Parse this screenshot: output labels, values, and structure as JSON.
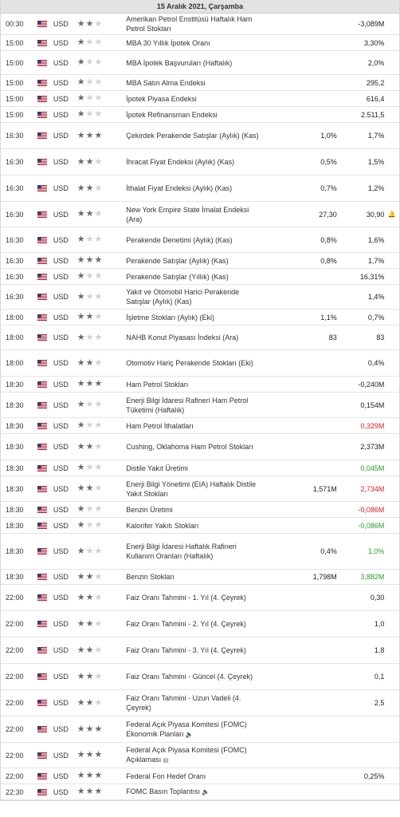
{
  "calendar": {
    "date_header": "15 Aralık 2021, Çarşamba",
    "events": [
      {
        "time": "00:30",
        "currency": "USD",
        "stars": 2,
        "event": "Amerikan Petrol Enstitüsü Haftalık Ham Petrol Stokları",
        "actual": "",
        "forecast": "",
        "previous": "-3,089M",
        "prev_color": "",
        "h": 27
      },
      {
        "time": "15:00",
        "currency": "USD",
        "stars": 1,
        "event": "MBA 30 Yıllık İpotek Oranı",
        "actual": "",
        "forecast": "",
        "previous": "3,30%",
        "prev_color": "",
        "h": 20
      },
      {
        "time": "15:00",
        "currency": "USD",
        "stars": 1,
        "event": "MBA İpotek Başvuruları (Haftalık)",
        "actual": "",
        "forecast": "",
        "previous": "2,0%",
        "prev_color": "",
        "h": 30
      },
      {
        "time": "15:00",
        "currency": "USD",
        "stars": 1,
        "event": "MBA Satın Alma Endeksi",
        "actual": "",
        "forecast": "",
        "previous": "295,2",
        "prev_color": "",
        "h": 20
      },
      {
        "time": "15:00",
        "currency": "USD",
        "stars": 1,
        "event": "İpotek Piyasa Endeksi",
        "actual": "",
        "forecast": "",
        "previous": "616,4",
        "prev_color": "",
        "h": 20
      },
      {
        "time": "15:00",
        "currency": "USD",
        "stars": 1,
        "event": "İpotek Refinansman Endeksi",
        "actual": "",
        "forecast": "",
        "previous": "2.511,5",
        "prev_color": "",
        "h": 20
      },
      {
        "time": "16:30",
        "currency": "USD",
        "stars": 3,
        "event": "Çekirdek Perakende Satışlar (Aylık) (Kas)",
        "actual": "",
        "forecast": "1,0%",
        "previous": "1,7%",
        "prev_color": "",
        "h": 33
      },
      {
        "time": "16:30",
        "currency": "USD",
        "stars": 2,
        "event": "İhracat Fiyat Endeksi (Aylık) (Kas)",
        "actual": "",
        "forecast": "0,5%",
        "previous": "1,5%",
        "prev_color": "",
        "h": 33
      },
      {
        "time": "16:30",
        "currency": "USD",
        "stars": 2,
        "event": "İthalat Fiyat Endeksi (Aylık) (Kas)",
        "actual": "",
        "forecast": "0,7%",
        "previous": "1,2%",
        "prev_color": "",
        "h": 33
      },
      {
        "time": "16:30",
        "currency": "USD",
        "stars": 2,
        "event": "New York Empire State İmalat Endeksi (Ara)",
        "actual": "",
        "forecast": "27,30",
        "previous": "30,90",
        "prev_color": "",
        "h": 32,
        "bell": true
      },
      {
        "time": "16:30",
        "currency": "USD",
        "stars": 1,
        "event": "Perakende Denetimi (Aylık) (Kas)",
        "actual": "",
        "forecast": "0,8%",
        "previous": "1,6%",
        "prev_color": "",
        "h": 32
      },
      {
        "time": "16:30",
        "currency": "USD",
        "stars": 3,
        "event": "Perakende Satışlar (Aylık) (Kas)",
        "actual": "",
        "forecast": "0,8%",
        "previous": "1,7%",
        "prev_color": "",
        "h": 20
      },
      {
        "time": "16:30",
        "currency": "USD",
        "stars": 1,
        "event": "Perakende Satışlar (Yıllık) (Kas)",
        "actual": "",
        "forecast": "",
        "previous": "16,31%",
        "prev_color": "",
        "h": 20
      },
      {
        "time": "16:30",
        "currency": "USD",
        "stars": 1,
        "event": "Yakıt ve Otomobil Harici Perakende Satışlar (Aylık) (Kas)",
        "actual": "",
        "forecast": "",
        "previous": "1,4%",
        "prev_color": "",
        "h": 31
      },
      {
        "time": "18:00",
        "currency": "USD",
        "stars": 2,
        "event": "İşletme Stokları (Aylık) (Eki)",
        "actual": "",
        "forecast": "1,1%",
        "previous": "0,7%",
        "prev_color": "",
        "h": 20
      },
      {
        "time": "18:00",
        "currency": "USD",
        "stars": 1,
        "event": "NAHB Konut Piyasası İndeksi (Ara)",
        "actual": "",
        "forecast": "83",
        "previous": "83",
        "prev_color": "",
        "h": 31
      },
      {
        "time": "18:00",
        "currency": "USD",
        "stars": 2,
        "event": "Otomotiv Hariç Perakende Stokları (Eki)",
        "actual": "",
        "forecast": "",
        "previous": "0,4%",
        "prev_color": "",
        "h": 33
      },
      {
        "time": "18:30",
        "currency": "USD",
        "stars": 3,
        "event": "Ham Petrol Stokları",
        "actual": "",
        "forecast": "",
        "previous": "-0,240M",
        "prev_color": "",
        "h": 20
      },
      {
        "time": "18:30",
        "currency": "USD",
        "stars": 1,
        "event": "Enerji Bilgi İdaresi Rafineri Ham Petrol Tüketimi (Haftalık)",
        "actual": "",
        "forecast": "",
        "previous": "0,154M",
        "prev_color": "",
        "h": 32
      },
      {
        "time": "18:30",
        "currency": "USD",
        "stars": 1,
        "event": "Ham Petrol İthalatları",
        "actual": "",
        "forecast": "",
        "previous": "0,329M",
        "prev_color": "red",
        "h": 20
      },
      {
        "time": "18:30",
        "currency": "USD",
        "stars": 2,
        "event": "Cushing, Oklahoma Ham Petrol Stokları",
        "actual": "",
        "forecast": "",
        "previous": "2,373M",
        "prev_color": "",
        "h": 33
      },
      {
        "time": "18:30",
        "currency": "USD",
        "stars": 1,
        "event": "Distile Yakıt Üretimi",
        "actual": "",
        "forecast": "",
        "previous": "0,045M",
        "prev_color": "green",
        "h": 20
      },
      {
        "time": "18:30",
        "currency": "USD",
        "stars": 2,
        "event": "Enerji Bilgi Yönetimi (EIA) Haftalık Distile Yakıt Stokları",
        "actual": "",
        "forecast": "1,571M",
        "previous": "2,734M",
        "prev_color": "red",
        "h": 32
      },
      {
        "time": "18:30",
        "currency": "USD",
        "stars": 1,
        "event": "Benzin Üretimi",
        "actual": "",
        "forecast": "",
        "previous": "-0,086M",
        "prev_color": "red",
        "h": 20
      },
      {
        "time": "18:30",
        "currency": "USD",
        "stars": 1,
        "event": "Kalorifer Yakıtı Stokları",
        "actual": "",
        "forecast": "",
        "previous": "-0,086M",
        "prev_color": "green",
        "h": 20
      },
      {
        "time": "18:30",
        "currency": "USD",
        "stars": 1,
        "event": "Enerji Bilgi İdaresi Haftalık Rafineri Kullanım Oranları (Haftalık)",
        "actual": "",
        "forecast": "0,4%",
        "previous": "1,0%",
        "prev_color": "green",
        "h": 45
      },
      {
        "time": "18:30",
        "currency": "USD",
        "stars": 2,
        "event": "Benzin Stokları",
        "actual": "",
        "forecast": "1,798M",
        "previous": "3,882M",
        "prev_color": "green",
        "h": 19
      },
      {
        "time": "22:00",
        "currency": "USD",
        "stars": 2,
        "event": "Faiz Oranı Tahmini - 1. Yıl (4. Çeyrek)",
        "actual": "",
        "forecast": "",
        "previous": "0,30",
        "prev_color": "",
        "h": 33
      },
      {
        "time": "22:00",
        "currency": "USD",
        "stars": 2,
        "event": "Faiz Oranı Tahmini - 2. Yıl (4. Çeyrek)",
        "actual": "",
        "forecast": "",
        "previous": "1,0",
        "prev_color": "",
        "h": 33
      },
      {
        "time": "22:00",
        "currency": "USD",
        "stars": 2,
        "event": "Faiz Oranı Tahmini - 3. Yıl (4. Çeyrek)",
        "actual": "",
        "forecast": "",
        "previous": "1,8",
        "prev_color": "",
        "h": 33
      },
      {
        "time": "22:00",
        "currency": "USD",
        "stars": 2,
        "event": "Faiz Oranı Tahmini - Güncel (4. Çeyrek)",
        "actual": "",
        "forecast": "",
        "previous": "0,1",
        "prev_color": "",
        "h": 33
      },
      {
        "time": "22:00",
        "currency": "USD",
        "stars": 2,
        "event": "Faiz Oranı Tahmini - Uzun Vadeli (4. Çeyrek)",
        "actual": "",
        "forecast": "",
        "previous": "2,5",
        "prev_color": "",
        "h": 33
      },
      {
        "time": "22:00",
        "currency": "USD",
        "stars": 3,
        "event": "Federal Açık Piyasa Komitesi (FOMC) Ekonomik Planları",
        "actual": "",
        "forecast": "",
        "previous": "",
        "prev_color": "",
        "h": 33,
        "icon": "speaker"
      },
      {
        "time": "22:00",
        "currency": "USD",
        "stars": 3,
        "event": "Federal Açık Piyasa Komitesi (FOMC) Açıklaması",
        "actual": "",
        "forecast": "",
        "previous": "",
        "prev_color": "",
        "h": 32,
        "icon": "document"
      },
      {
        "time": "22:00",
        "currency": "USD",
        "stars": 3,
        "event": "Federal Fon Hedef Oranı",
        "actual": "",
        "forecast": "",
        "previous": "0,25%",
        "prev_color": "",
        "h": 20
      },
      {
        "time": "22:30",
        "currency": "USD",
        "stars": 3,
        "event": "FOMC Basın Toplantısı",
        "actual": "",
        "forecast": "",
        "previous": "",
        "prev_color": "",
        "h": 20,
        "icon": "speaker"
      }
    ]
  },
  "colors": {
    "red": "#e01c1c",
    "green": "#2a9d2a",
    "star_on": "#6b6b6b",
    "star_off": "#cfcfcf"
  }
}
